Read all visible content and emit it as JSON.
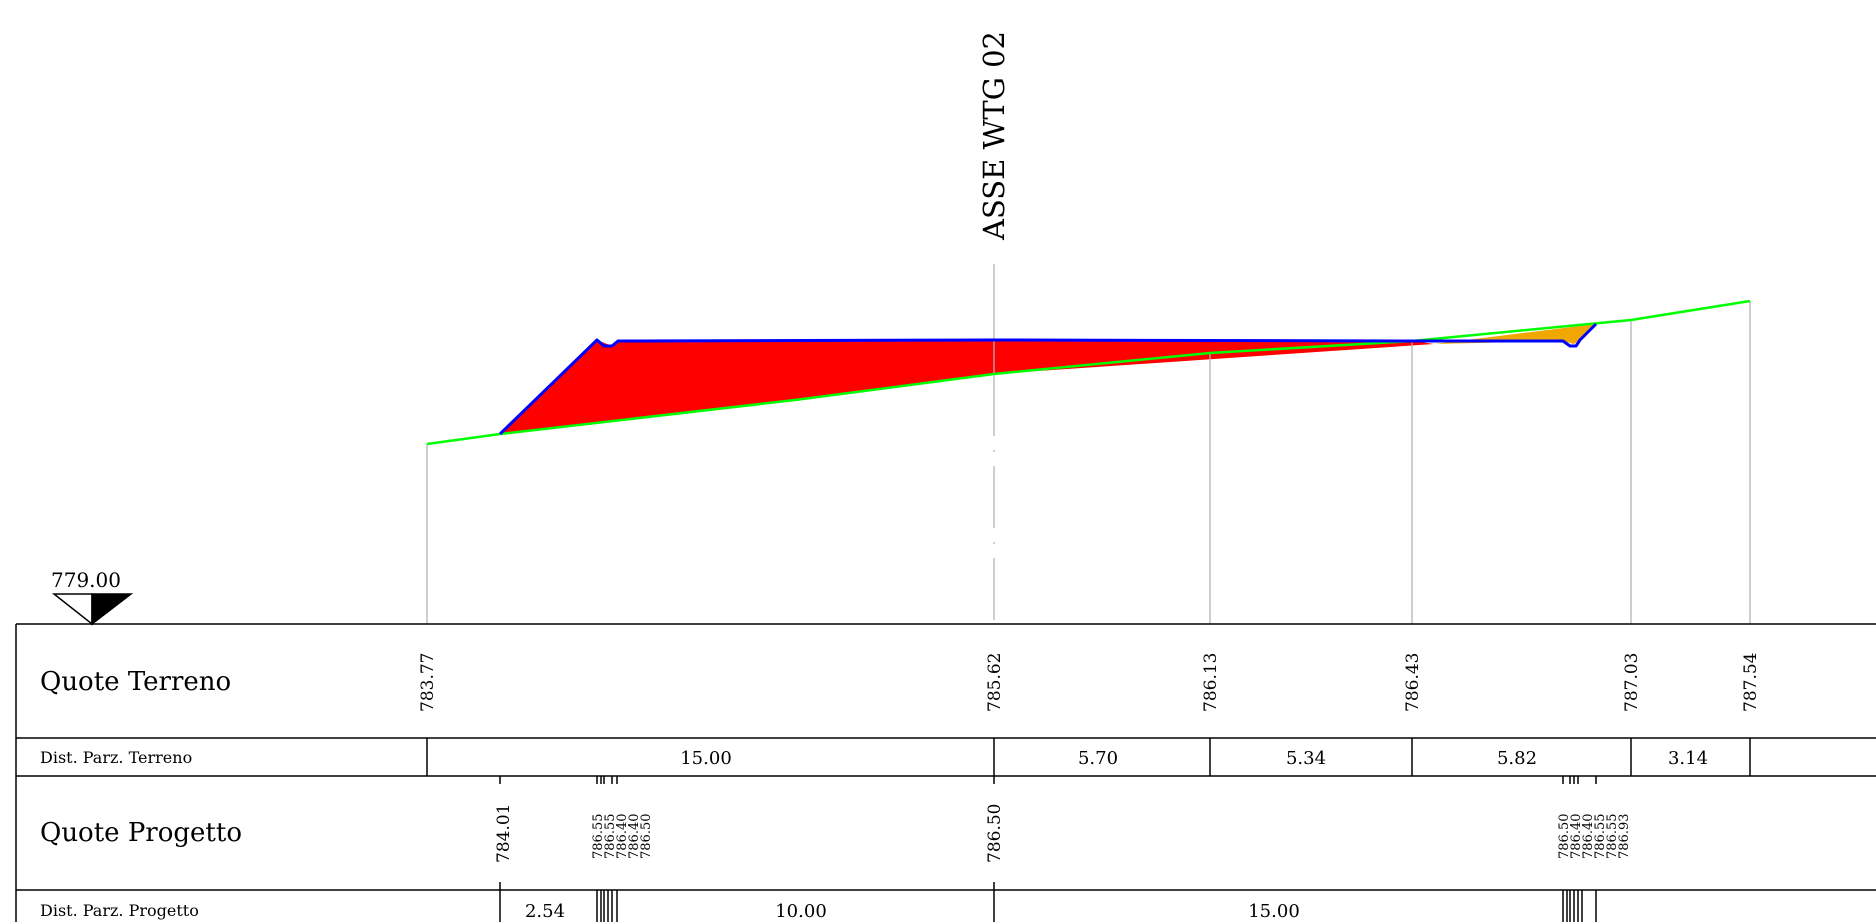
{
  "axis_label": "ASSE WTG 02",
  "datum": "779.00",
  "rows": {
    "quote_terreno": "Quote Terreno",
    "dist_terreno": "Dist. Parz. Terreno",
    "quote_progetto": "Quote Progetto",
    "dist_progetto": "Dist. Parz. Progetto"
  },
  "terrain_elevations": [
    "783.77",
    "785.62",
    "786.13",
    "786.43",
    "787.03",
    "787.54"
  ],
  "terrain_distances": [
    "15.00",
    "5.70",
    "5.34",
    "5.82",
    "3.14"
  ],
  "design_elevations": {
    "left_toe": "784.01",
    "left_group": [
      "786.55",
      "786.55",
      "786.40",
      "786.40",
      "786.50"
    ],
    "axis": "786.50",
    "right_group": [
      "786.50",
      "786.40",
      "786.40",
      "786.55",
      "786.55",
      "786.93"
    ]
  },
  "design_distances": [
    "2.54",
    "10.00",
    "15.00"
  ],
  "colors": {
    "fill_red": "#ff0000",
    "fill_orange": "#f0a800",
    "design_line": "#0000ff",
    "terrain_line": "#00ff00",
    "grid": "#b3b3b3"
  }
}
